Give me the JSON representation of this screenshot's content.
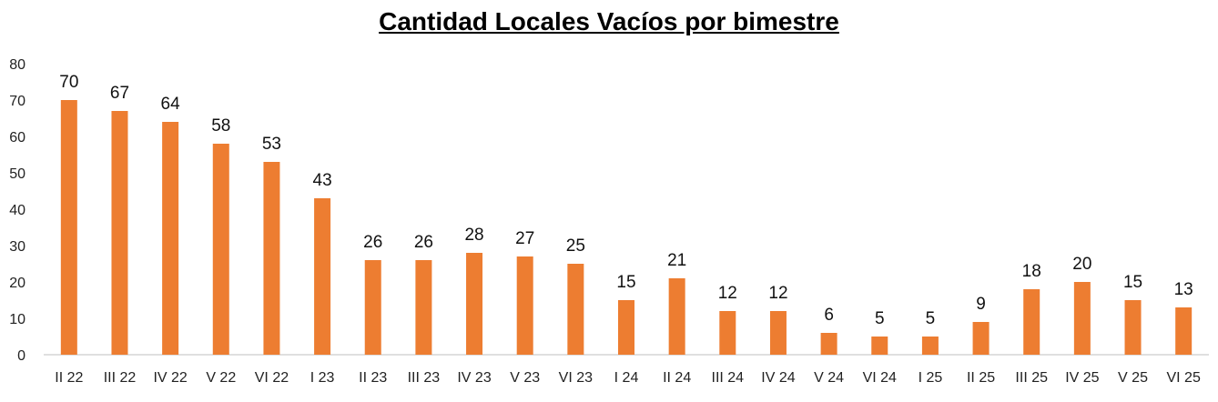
{
  "chart_data": {
    "type": "bar",
    "title": "Cantidad Locales Vacíos por bimestre",
    "xlabel": "",
    "ylabel": "",
    "ylim": [
      0,
      80
    ],
    "yticks": [
      0,
      10,
      20,
      30,
      40,
      50,
      60,
      70,
      80
    ],
    "grid": false,
    "legend": "none",
    "bar_color": "#ED7D31",
    "categories": [
      "II 22",
      "III 22",
      "IV 22",
      "V 22",
      "VI 22",
      "I 23",
      "II 23",
      "III 23",
      "IV 23",
      "V 23",
      "VI 23",
      "I 24",
      "II 24",
      "III 24",
      "IV 24",
      "V 24",
      "VI 24",
      "I 25",
      "II 25",
      "III 25",
      "IV 25",
      "V 25",
      "VI 25"
    ],
    "values": [
      70,
      67,
      64,
      58,
      53,
      43,
      26,
      26,
      28,
      27,
      25,
      15,
      21,
      12,
      12,
      6,
      5,
      5,
      9,
      18,
      20,
      15,
      13
    ]
  }
}
